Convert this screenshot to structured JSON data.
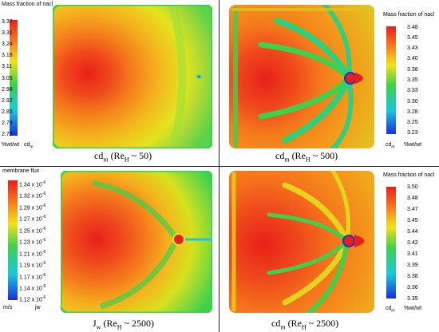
{
  "panels": [
    {
      "legend_title": "Mass fraction of nacl",
      "ticks": [
        "3.37",
        "3.31",
        "3.24",
        "3.18",
        "3.11",
        "3.05",
        "2.98",
        "2.92",
        "2.85",
        "2.79",
        "2.72"
      ],
      "unit_left": "%wt/wt",
      "unit_right": "cd",
      "unit_right_sub": "m",
      "caption_main": "cd",
      "caption_sub": "m",
      "caption_paren": " (Re",
      "caption_paren_sub": "H",
      "caption_tail": " ~ 50)"
    },
    {
      "legend_title": "Mass fraction of nacl",
      "ticks": [
        "3.48",
        "3.45",
        "3.43",
        "3.40",
        "3.38",
        "3.35",
        "3.33",
        "3.30",
        "3.28",
        "3.25",
        "3.23"
      ],
      "unit_left": "cd",
      "unit_left_sub": "m",
      "unit_right": "%wt/wt",
      "caption_main": "cd",
      "caption_sub": "m",
      "caption_paren": " (Re",
      "caption_paren_sub": "H",
      "caption_tail": " ~ 500)"
    },
    {
      "legend_title": "membrane flux",
      "ticks": [
        "1.34 x 10",
        "1.32 x 10",
        "1.29 x 10",
        "1.27 x 10",
        "1.25 x 10",
        "1.23 x 10",
        "1.21 x 10",
        "1.19 x 10",
        "1.17 x 10",
        "1.14 x 10",
        "1.12 x 10"
      ],
      "tick_exp": "-6",
      "unit_left": "m/s",
      "unit_right": "jw",
      "caption_main": "J",
      "caption_sub": "w",
      "caption_paren": " (Re",
      "caption_paren_sub": "H",
      "caption_tail": " ~ 2500)"
    },
    {
      "legend_title": "Mass fraction of nacl",
      "ticks": [
        "3.50",
        "3.48",
        "3.47",
        "3.45",
        "3.44",
        "3.42",
        "3.41",
        "3.39",
        "3.38",
        "3.36",
        "3.35"
      ],
      "unit_left": "cd",
      "unit_left_sub": "m",
      "unit_right": "%wt/wt",
      "caption_main": "cd",
      "caption_sub": "m",
      "caption_paren": " (Re",
      "caption_paren_sub": "H",
      "caption_tail": " ~ 2500)"
    }
  ],
  "colors": {
    "red": "#e8201a",
    "orange": "#f57a1c",
    "yellow": "#f2e21a",
    "green": "#3ed14a",
    "cyan": "#19c8dc",
    "blue": "#1a2fd8",
    "divider": "#222222"
  }
}
